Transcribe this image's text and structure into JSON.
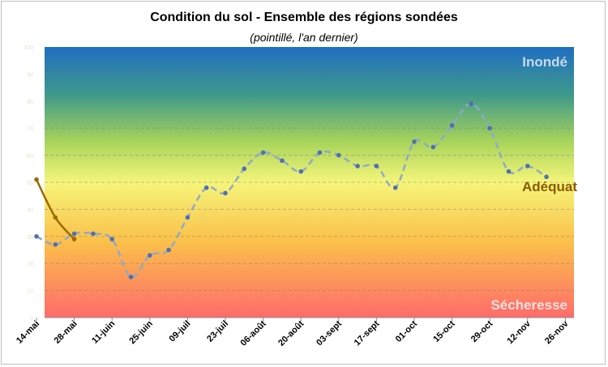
{
  "chart_data": {
    "type": "line",
    "title": "Condition du sol - Ensemble des régions sondées",
    "subtitle": "(pointillé, l'an dernier)",
    "x_ticks": [
      "14-mai",
      "28-mai",
      "11-juin",
      "25-juin",
      "09-juil",
      "23-juil",
      "06-août",
      "20-août",
      "03-sept",
      "17-sept",
      "01-oct",
      "15-oct",
      "29-oct",
      "12-nov",
      "26-nov"
    ],
    "y_ticks": [
      0,
      10,
      20,
      30,
      40,
      50,
      60,
      70,
      80,
      90,
      100
    ],
    "ylim": [
      0,
      100
    ],
    "grid": "horizontal dashed",
    "background": "vertical gradient from red (low) through yellow to blue (high)",
    "zone_labels": {
      "top": "Inondé",
      "middle": "Adéquat",
      "bottom": "Sécheresse"
    },
    "series": [
      {
        "style": "dashed",
        "color": "#8fa9c9",
        "marker_color": "#4f6fb5",
        "x": [
          "14-mai",
          "21-mai",
          "28-mai",
          "04-juin",
          "11-juin",
          "18-juin",
          "25-juin",
          "02-juil",
          "09-juil",
          "16-juil",
          "23-juil",
          "30-juil",
          "06-août",
          "13-août",
          "20-août",
          "27-août",
          "03-sept",
          "10-sept",
          "17-sept",
          "24-sept",
          "01-oct",
          "08-oct",
          "15-oct",
          "22-oct",
          "29-oct",
          "05-nov",
          "12-nov",
          "19-nov"
        ],
        "values": [
          30,
          27,
          31,
          31,
          29,
          15,
          23,
          25,
          37,
          48,
          46,
          55,
          61,
          58,
          54,
          61,
          60,
          56,
          56,
          48,
          65,
          63,
          71,
          79,
          70,
          54,
          56,
          52
        ]
      },
      {
        "style": "solid",
        "color": "#9c6b00",
        "marker_color": "#9c6b00",
        "x": [
          "14-mai",
          "21-mai",
          "28-mai"
        ],
        "values": [
          51,
          37,
          29
        ]
      }
    ],
    "colors": {
      "top_label": "#c8d8ef",
      "middle_label": "#8a5a00",
      "bottom_label": "#ffe0e0"
    }
  }
}
